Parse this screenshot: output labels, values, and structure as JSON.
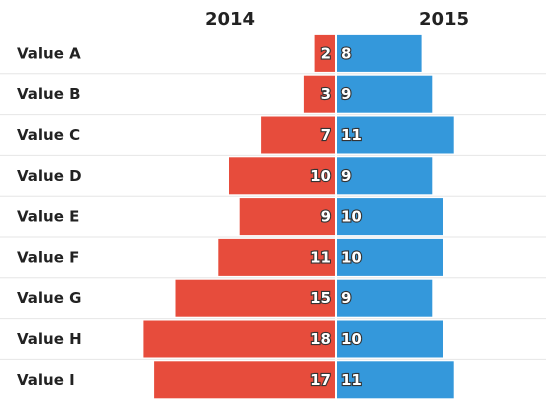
{
  "chart_data": {
    "type": "bar",
    "orientation": "horizontal",
    "layout": "diverging",
    "categories": [
      "Value A",
      "Value B",
      "Value C",
      "Value D",
      "Value E",
      "Value F",
      "Value G",
      "Value H",
      "Value I"
    ],
    "series": [
      {
        "name": "2014",
        "values": [
          2,
          3,
          7,
          10,
          9,
          11,
          15,
          18,
          17
        ],
        "color": "#e74c3c",
        "side": "left"
      },
      {
        "name": "2015",
        "values": [
          8,
          9,
          11,
          9,
          10,
          10,
          9,
          10,
          11
        ],
        "color": "#3498db",
        "side": "right"
      }
    ],
    "xlim": [
      0,
      18
    ],
    "grid": false,
    "legend": "none",
    "data_labels": true
  }
}
